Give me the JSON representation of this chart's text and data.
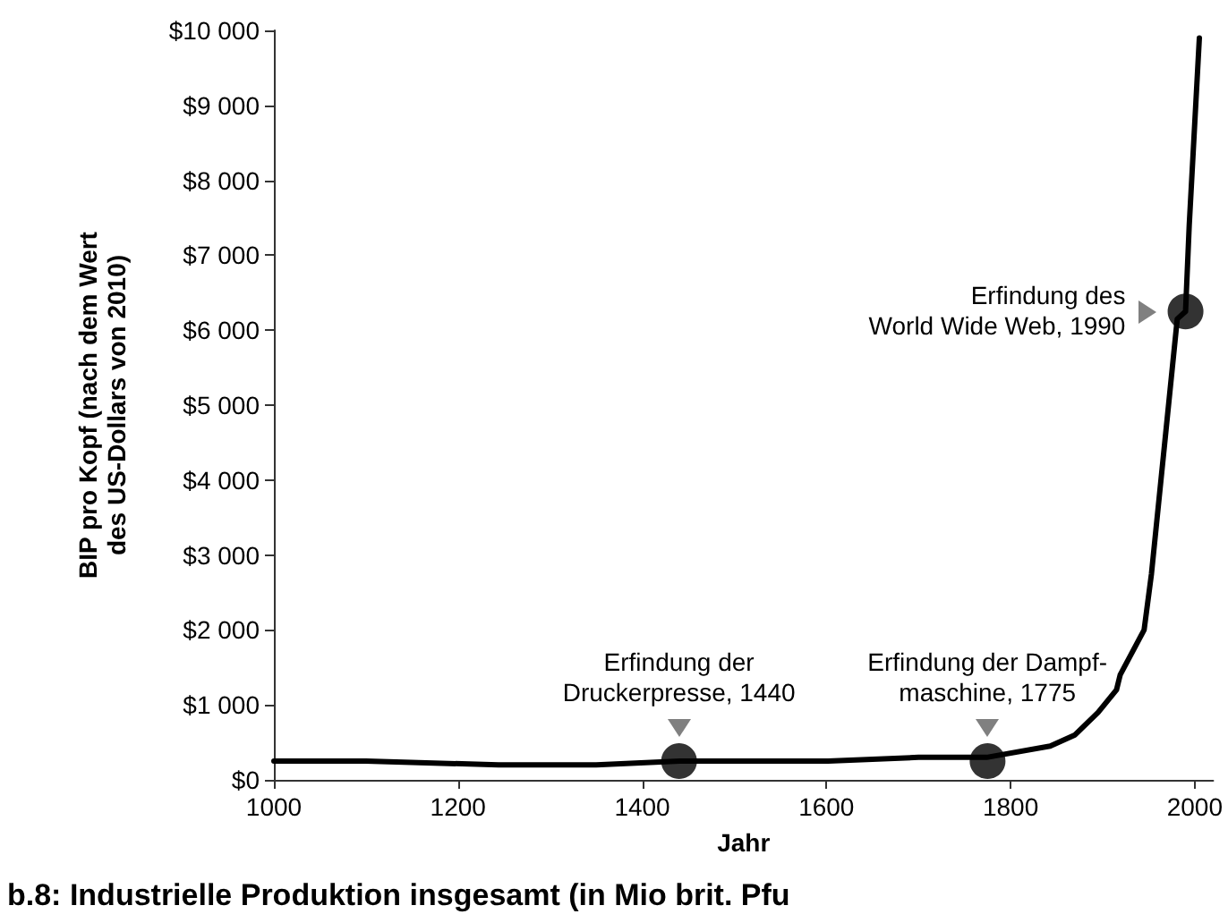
{
  "chart_data": {
    "type": "line",
    "xlabel": "Jahr",
    "ylabel": "BIP pro Kopf (nach dem Wert\ndes US-Dollars von 2010)",
    "xlim": [
      1000,
      2020
    ],
    "xticks": [
      1000,
      1200,
      1400,
      1600,
      1800,
      2000
    ],
    "ylim": [
      0,
      10000
    ],
    "yticks": [
      {
        "value": 0,
        "label": "$0"
      },
      {
        "value": 1000,
        "label": "$1 000"
      },
      {
        "value": 2000,
        "label": "$2 000"
      },
      {
        "value": 3000,
        "label": "$3 000"
      },
      {
        "value": 4000,
        "label": "$4 000"
      },
      {
        "value": 5000,
        "label": "$5 000"
      },
      {
        "value": 6000,
        "label": "$6 000"
      },
      {
        "value": 7000,
        "label": "$7 000"
      },
      {
        "value": 8000,
        "label": "$8 000"
      },
      {
        "value": 9000,
        "label": "$9 000"
      },
      {
        "value": 10000,
        "label": "$10 000"
      }
    ],
    "grid": false,
    "marker": "none",
    "line_style": "solid",
    "series": [
      {
        "color": "#000000",
        "x": [
          1000,
          1100,
          1244,
          1350,
          1441,
          1602,
          1700,
          1774,
          1843,
          1870,
          1895,
          1915,
          1919,
          1945,
          1953,
          1967,
          1981,
          1990,
          1994,
          2005
        ],
        "values": [
          250,
          250,
          200,
          200,
          250,
          250,
          300,
          300,
          450,
          600,
          900,
          1200,
          1400,
          2000,
          2750,
          4450,
          6150,
          6250,
          7400,
          9900
        ]
      },
      {
        "type": "scatter",
        "color": "#000000",
        "marker": "circle",
        "x": [
          1440,
          1775,
          1990
        ],
        "values": [
          250,
          250,
          6250
        ]
      }
    ],
    "annotations": [
      {
        "text": "Erfindung der\nDruckerpresse, 1440",
        "x": 1440,
        "y": 250
      },
      {
        "text": "Erfindung der Dampf-\nmaschine, 1775",
        "x": 1775,
        "y": 250
      },
      {
        "text": "Erfindung des\nWorld Wide Web, 1990",
        "x": 1990,
        "y": 6250
      },
      "b.8: Industrielle Produktion insgesamt (in Mio brit. Pfu"
    ]
  }
}
